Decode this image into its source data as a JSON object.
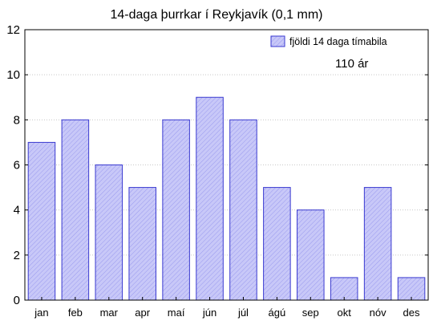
{
  "chart_data": {
    "type": "bar",
    "title": "14-daga þurrkar í Reykjavík (0,1 mm)",
    "categories": [
      "jan",
      "feb",
      "mar",
      "apr",
      "maí",
      "jún",
      "júl",
      "ágú",
      "sep",
      "okt",
      "nóv",
      "des"
    ],
    "series": [
      {
        "name": "fjöldi 14 daga tímabila",
        "values": [
          7,
          8,
          6,
          5,
          8,
          9,
          8,
          5,
          4,
          1,
          5,
          1
        ]
      }
    ],
    "annotation": "110 ár",
    "xlabel": "",
    "ylabel": "",
    "ylim": [
      0,
      12
    ],
    "yticks": [
      0,
      2,
      4,
      6,
      8,
      10,
      12
    ],
    "grid": true,
    "legend_position": "top-right",
    "colors": {
      "bar_fill": "#c8c8f8",
      "bar_stroke": "#3a3ad0",
      "grid": "#c8c8c8"
    }
  }
}
